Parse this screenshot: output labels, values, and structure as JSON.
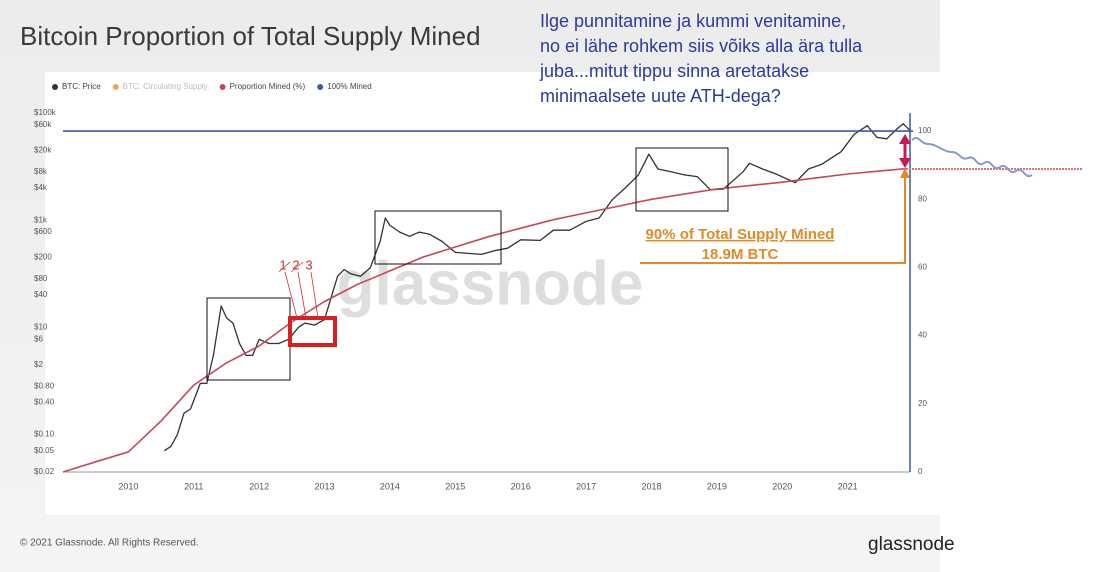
{
  "chart_data": {
    "type": "line",
    "title": "Bitcoin Proportion of Total Supply Mined",
    "xlim": [
      2009,
      2022
    ],
    "xticks": [
      2010,
      2011,
      2012,
      2013,
      2014,
      2015,
      2016,
      2017,
      2018,
      2019,
      2020,
      2021
    ],
    "ylog": true,
    "ylim": [
      0.02,
      100000
    ],
    "yticks": [
      {
        "value": 0.02,
        "label": "$0.02"
      },
      {
        "value": 0.05,
        "label": "$0.05"
      },
      {
        "value": 0.1,
        "label": "$0.10"
      },
      {
        "value": 0.4,
        "label": "$0.40"
      },
      {
        "value": 0.8,
        "label": "$0.80"
      },
      {
        "value": 2,
        "label": "$2"
      },
      {
        "value": 6,
        "label": "$6"
      },
      {
        "value": 10,
        "label": "$10"
      },
      {
        "value": 40,
        "label": "$40"
      },
      {
        "value": 80,
        "label": "$80"
      },
      {
        "value": 200,
        "label": "$200"
      },
      {
        "value": 600,
        "label": "$600"
      },
      {
        "value": 1000,
        "label": "$1k"
      },
      {
        "value": 4000,
        "label": "$4k"
      },
      {
        "value": 8000,
        "label": "$8k"
      },
      {
        "value": 20000,
        "label": "$20k"
      },
      {
        "value": 60000,
        "label": "$60k"
      },
      {
        "value": 100000,
        "label": "$100k"
      }
    ],
    "y2lim": [
      0,
      105.3
    ],
    "y2ticks": [
      0,
      20,
      40,
      60,
      80,
      100
    ],
    "grid": false,
    "legend": "top-left",
    "series": [
      {
        "name": "BTC: Price",
        "color": "#333333",
        "x": [
          2010.55,
          2010.65,
          2010.75,
          2010.85,
          2010.95,
          2011.1,
          2011.2,
          2011.3,
          2011.42,
          2011.5,
          2011.6,
          2011.7,
          2011.8,
          2011.9,
          2012.0,
          2012.15,
          2012.3,
          2012.45,
          2012.6,
          2012.7,
          2012.85,
          2013.0,
          2013.2,
          2013.3,
          2013.4,
          2013.55,
          2013.7,
          2013.85,
          2013.93,
          2014.0,
          2014.15,
          2014.3,
          2014.45,
          2014.6,
          2014.8,
          2015.0,
          2015.2,
          2015.4,
          2015.6,
          2015.8,
          2016.0,
          2016.3,
          2016.5,
          2016.75,
          2017.0,
          2017.2,
          2017.4,
          2017.6,
          2017.8,
          2017.96,
          2018.1,
          2018.3,
          2018.5,
          2018.7,
          2018.9,
          2019.1,
          2019.4,
          2019.5,
          2019.7,
          2019.9,
          2020.2,
          2020.4,
          2020.6,
          2020.9,
          2021.1,
          2021.3,
          2021.45,
          2021.6,
          2021.75,
          2021.85,
          2021.95
        ],
        "values": [
          0.05,
          0.06,
          0.1,
          0.25,
          0.3,
          0.9,
          0.9,
          3,
          25,
          15,
          12,
          5,
          3,
          3,
          6,
          5,
          5,
          6,
          10,
          12,
          11,
          14,
          90,
          120,
          100,
          90,
          130,
          400,
          1100,
          800,
          600,
          500,
          600,
          550,
          400,
          250,
          240,
          230,
          270,
          300,
          430,
          420,
          650,
          650,
          950,
          1100,
          2400,
          4000,
          7000,
          17000,
          9000,
          8000,
          7000,
          6500,
          3700,
          3800,
          8000,
          11500,
          9000,
          7300,
          5000,
          9000,
          11000,
          19000,
          40000,
          58000,
          35000,
          33000,
          50000,
          63000,
          48000
        ]
      },
      {
        "name": "BTC: Circulating Supply",
        "color": "#f0a35a",
        "visible": false
      },
      {
        "name": "Proportion Mined (%)",
        "color": "#c9465a",
        "axis": "y2",
        "x": [
          2009,
          2009.5,
          2010,
          2010.5,
          2011,
          2011.5,
          2012,
          2012.5,
          2013,
          2013.5,
          2014,
          2014.5,
          2015,
          2015.5,
          2016,
          2016.5,
          2017,
          2017.5,
          2018,
          2018.5,
          2019,
          2019.5,
          2020,
          2020.5,
          2021,
          2021.9
        ],
        "values": [
          0,
          3,
          5.9,
          15,
          25.5,
          32,
          37,
          44,
          50,
          55,
          59,
          63,
          66,
          69,
          71.5,
          74,
          76,
          78,
          80,
          81.5,
          83,
          84,
          85,
          86.2,
          87.4,
          89
        ]
      },
      {
        "name": "100% Mined",
        "color": "#3a5aa8",
        "axis": "y2",
        "x": [
          2009,
          2022
        ],
        "values": [
          100,
          100
        ]
      }
    ],
    "annotations": [
      "1",
      "2",
      "3",
      "90% of Total Supply Mined",
      "18.9M BTC"
    ],
    "watermark": "glassnode"
  },
  "footer": {
    "copyright": "© 2021 Glassnode. All Rights Reserved.",
    "logo": "glassnode"
  },
  "comment": [
    "Ilge punnitamine ja kummi venitamine,",
    "no ei lähe rohkem siis võiks alla ära tulla",
    "juba...mitut tippu sinna aretatakse",
    "minimaalsete uute ATH-dega?"
  ]
}
